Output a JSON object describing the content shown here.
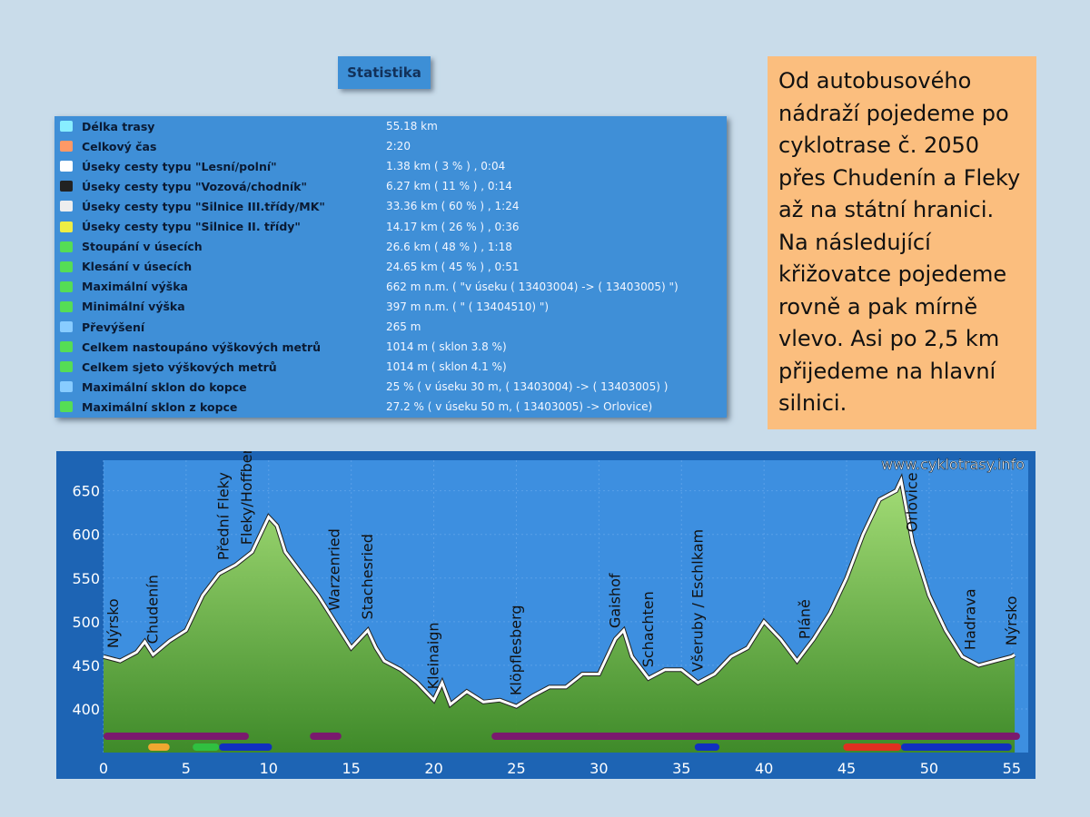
{
  "statistika": {
    "title": "Statistika",
    "rows": [
      [
        "Délka trasy",
        "55.18 km"
      ],
      [
        "Celkový čas",
        "2:20"
      ],
      [
        "Úseky cesty typu \"Lesní/polní\"",
        "1.38 km  ( 3 % )  , 0:04"
      ],
      [
        "Úseky cesty typu \"Vozová/chodník\"",
        "6.27 km  ( 11 % )  , 0:14"
      ],
      [
        "Úseky cesty typu \"Silnice III.třídy/MK\"",
        "33.36 km  ( 60 % )  , 1:24"
      ],
      [
        "Úseky cesty typu \"Silnice II. třídy\"",
        "14.17 km  ( 26 % )  , 0:36"
      ],
      [
        "Stoupání v úsecích",
        "26.6 km  ( 48 % )  , 1:18"
      ],
      [
        "Klesání v úsecích",
        "24.65 km  ( 45 % )  , 0:51"
      ],
      [
        "Maximální výška",
        "662 m n.m.  ( \"v úseku  ( 13403004)   ->  ( 13403005)  \")"
      ],
      [
        "Minimální výška",
        "397 m n.m.  ( \" ( 13404510)  \")"
      ],
      [
        "Převýšení",
        "265 m"
      ],
      [
        "Celkem nastoupáno výškových metrů",
        "1014 m  ( sklon 3.8 %)"
      ],
      [
        "Celkem sjeto výškových metrů",
        "1014 m  ( sklon 4.1 %)"
      ],
      [
        "Maximální sklon do kopce",
        "25 %  ( v úseku 30 m,  ( 13403004)   ->  ( 13403005)  )"
      ],
      [
        "Maximální sklon z kopce",
        "27.2 %  ( v úseku 50 m,  ( 13403005)   -> Orlovice)"
      ]
    ]
  },
  "note": "Od autobusového nádraží pojedeme po cyklotrase č. 2050 přes Chudenín a Fleky až na státní hranici. Na následující křižovatce pojedeme rovně a pak mírně vlevo. Asi po 2,5 km přijedeme na hlavní silnici.",
  "chart_data": {
    "type": "area",
    "watermark": "www.cyklotrasy.info",
    "x": [
      0,
      1,
      2,
      2.5,
      3,
      4,
      5,
      6,
      7,
      8,
      9,
      9.5,
      10,
      10.5,
      11,
      12,
      13,
      14,
      15,
      16,
      16.5,
      17,
      18,
      19,
      20,
      20.5,
      21,
      22,
      23,
      24,
      25,
      26,
      27,
      28,
      29,
      30,
      31,
      31.5,
      32,
      33,
      34,
      35,
      36,
      37,
      38,
      39,
      40,
      41,
      42,
      43,
      44,
      45,
      46,
      47,
      48,
      48.3,
      49,
      50,
      51,
      52,
      53,
      54,
      55,
      55.18
    ],
    "values": [
      460,
      455,
      465,
      477,
      462,
      478,
      490,
      530,
      555,
      565,
      580,
      600,
      620,
      610,
      580,
      555,
      530,
      500,
      470,
      490,
      470,
      455,
      445,
      430,
      410,
      430,
      405,
      420,
      408,
      410,
      403,
      415,
      425,
      425,
      440,
      440,
      480,
      490,
      460,
      435,
      445,
      445,
      430,
      440,
      460,
      470,
      500,
      480,
      455,
      480,
      510,
      550,
      600,
      640,
      650,
      662,
      590,
      530,
      490,
      460,
      450,
      455,
      460,
      462
    ],
    "color": "#7fc850",
    "xlim": [
      0,
      56
    ],
    "ylim": [
      350,
      685
    ],
    "xticks": [
      0,
      5,
      10,
      15,
      20,
      25,
      30,
      35,
      40,
      45,
      50,
      55
    ],
    "yticks": [
      400,
      450,
      500,
      550,
      600,
      650
    ],
    "grid": true,
    "places": [
      {
        "label": "Nýrsko",
        "x": 0.6
      },
      {
        "label": "Chudenín",
        "x": 3
      },
      {
        "label": "Přední Fleky",
        "x": 7.3
      },
      {
        "label": "Fleky/Hoffberg",
        "x": 8.7
      },
      {
        "label": "Warzenried",
        "x": 14
      },
      {
        "label": "Stachesried",
        "x": 16
      },
      {
        "label": "Kleinaign",
        "x": 20
      },
      {
        "label": "Klöpflesberg",
        "x": 25
      },
      {
        "label": "Gaishof",
        "x": 31
      },
      {
        "label": "Schachten",
        "x": 33
      },
      {
        "label": "Všeruby / Eschlkam",
        "x": 36
      },
      {
        "label": "Pláně",
        "x": 42.5
      },
      {
        "label": "Orlovice",
        "x": 49
      },
      {
        "label": "Hadrava",
        "x": 52.5
      },
      {
        "label": "Nýrsko",
        "x": 55
      }
    ],
    "bands": [
      {
        "from": 0,
        "to": 8.8,
        "color": "#7a1a6e",
        "row": 0
      },
      {
        "from": 12.5,
        "to": 14.4,
        "color": "#7a1a6e",
        "row": 0
      },
      {
        "from": 23.5,
        "to": 55.5,
        "color": "#7a1a6e",
        "row": 0
      },
      {
        "from": 2.7,
        "to": 4,
        "color": "#f0a830",
        "row": 1
      },
      {
        "from": 5.4,
        "to": 7,
        "color": "#30c040",
        "row": 1
      },
      {
        "from": 7,
        "to": 10.2,
        "color": "#1030c0",
        "row": 1
      },
      {
        "from": 35.8,
        "to": 37.3,
        "color": "#1030c0",
        "row": 1
      },
      {
        "from": 44.8,
        "to": 48.3,
        "color": "#e03020",
        "row": 1
      },
      {
        "from": 48.3,
        "to": 55,
        "color": "#1030c0",
        "row": 1
      }
    ]
  }
}
